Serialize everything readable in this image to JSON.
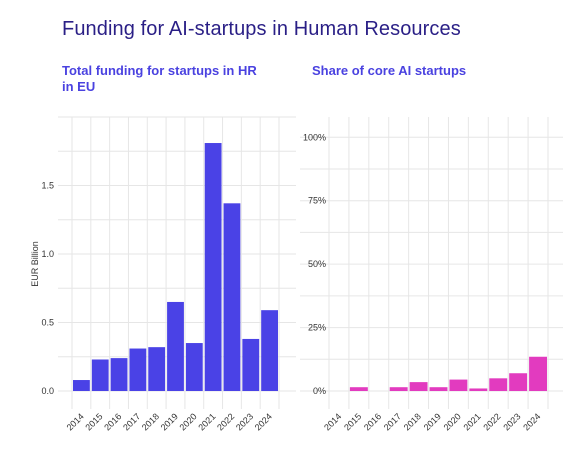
{
  "page": {
    "title": "Funding for AI-startups in Human Resources"
  },
  "chart_data": [
    {
      "type": "bar",
      "title": "Total funding for startups in HR in EU",
      "xlabel": "",
      "ylabel": "EUR Billion",
      "categories": [
        "2014",
        "2015",
        "2016",
        "2017",
        "2018",
        "2019",
        "2020",
        "2021",
        "2022",
        "2023",
        "2024"
      ],
      "values": [
        0.08,
        0.23,
        0.24,
        0.31,
        0.32,
        0.65,
        0.35,
        1.81,
        1.37,
        0.38,
        0.59
      ],
      "ylim": [
        0,
        2.0
      ],
      "yticks": [
        0.0,
        0.5,
        1.0,
        1.5
      ],
      "ytick_labels": [
        "0.0",
        "0.5",
        "1.0",
        "1.5"
      ],
      "color": "#4a42e6",
      "grid": true
    },
    {
      "type": "bar",
      "title": "Share of core AI startups",
      "xlabel": "",
      "ylabel": "",
      "categories": [
        "2014",
        "2015",
        "2016",
        "2017",
        "2018",
        "2019",
        "2020",
        "2021",
        "2022",
        "2023",
        "2024"
      ],
      "values": [
        0,
        1.5,
        0,
        1.5,
        3.5,
        1.5,
        4.5,
        1,
        5,
        7,
        13.5
      ],
      "ylim": [
        0,
        108
      ],
      "yticks": [
        0,
        25,
        50,
        75,
        100
      ],
      "ytick_labels": [
        "0%",
        "25%",
        "50%",
        "75%",
        "100%"
      ],
      "color": "#e23bbf",
      "grid": true
    }
  ]
}
